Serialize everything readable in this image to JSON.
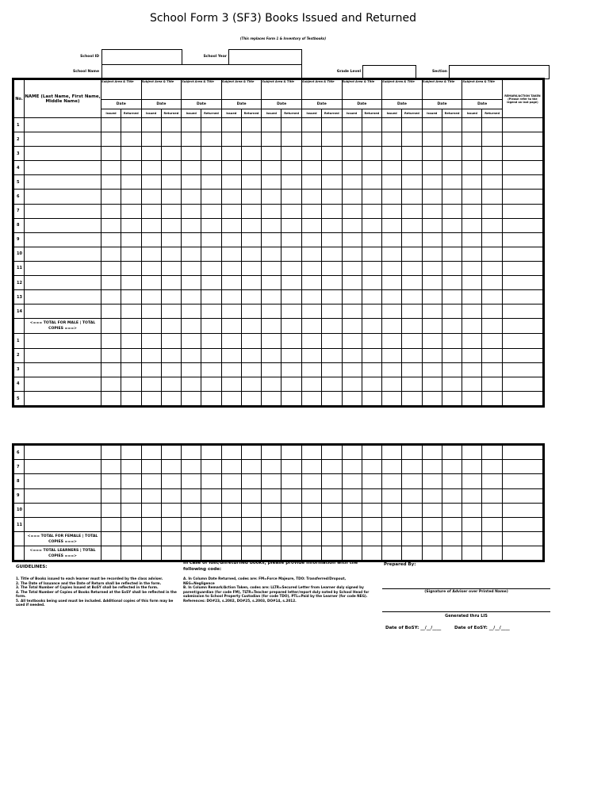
{
  "title": "School Form 3 (SF3) Books Issued and Returned",
  "subtitle": "(This replaces Form 1 & Inventory of Textbooks)",
  "fields": {
    "school_id": "School ID",
    "school_year": "School Year",
    "school_name": "School Name",
    "grade_level": "Grade Level",
    "section": "Section"
  },
  "table": {
    "no_header": "No.",
    "name_header": "NAME (Last Name, First Name, Middle Name)",
    "subject_header": "Subject Area & Title",
    "date_header": "Date",
    "issued": "Issued",
    "returned": "Returned",
    "remarks_header": "REMARK/ACTION TAKEN (Please refer to the legend on last page)",
    "subject_count": 10,
    "male_rows": [
      "1",
      "2",
      "3",
      "4",
      "5",
      "6",
      "7",
      "8",
      "9",
      "10",
      "11",
      "12",
      "13",
      "14"
    ],
    "male_total": "<=== TOTAL FOR MALE | TOTAL COPIES ===>",
    "female_rows_page1": [
      "1",
      "2",
      "3",
      "4",
      "5"
    ],
    "female_rows_page2": [
      "6",
      "7",
      "8",
      "9",
      "10",
      "11"
    ],
    "female_total": "<=== TOTAL FOR FEMALE | TOTAL COPIES ===>",
    "learners_total": "<=== TOTAL LEARNERS | TOTAL COPIES ===>"
  },
  "guidelines": {
    "heading": "GUIDELINES:",
    "items": [
      "1. Title of Books issued to each learner must be recorded by the class adviser.",
      "2. The Date of Issuance and the Date of Return shall be reflected in the form.",
      "3. The Total Number of Copies Issued at BoSY shall be reflected in the form.",
      "4. The Total Number of Copies of Books Returned at the EoSY shall be reflected in the form.",
      "5. All textbooks being used must be included. Additional copies of this form may be used if needed."
    ]
  },
  "codes": {
    "heading": "In case of lost/unreturned books, please provide information with the following code:",
    "items": [
      "A. In Column Date Returned, codes are: FM=Force Majeure, TDO: Transferred/Dropout, NEG=Negligence",
      "B. In Column Remark/Action Taken, codes are: LLTR=Secured Letter from Learner duly signed by parent/guardian (for code FM), TLTR=Teacher prepared letter/report duly noted by School Head for submission to School Property Custodian (for code TDO), PTL=Paid by the Learner (for code NEG). References: DO#23, s.2002, DO#25, s.2003, DO#14, s.2012."
    ]
  },
  "prepared": {
    "label": "Prepared By:",
    "signature": "(Signature of Adviser over Printed Name)",
    "generated": "Generated thru LIS",
    "bosy": "Date of BoSY: __/__/____",
    "eosy": "Date of EoSY: __/__/____"
  }
}
